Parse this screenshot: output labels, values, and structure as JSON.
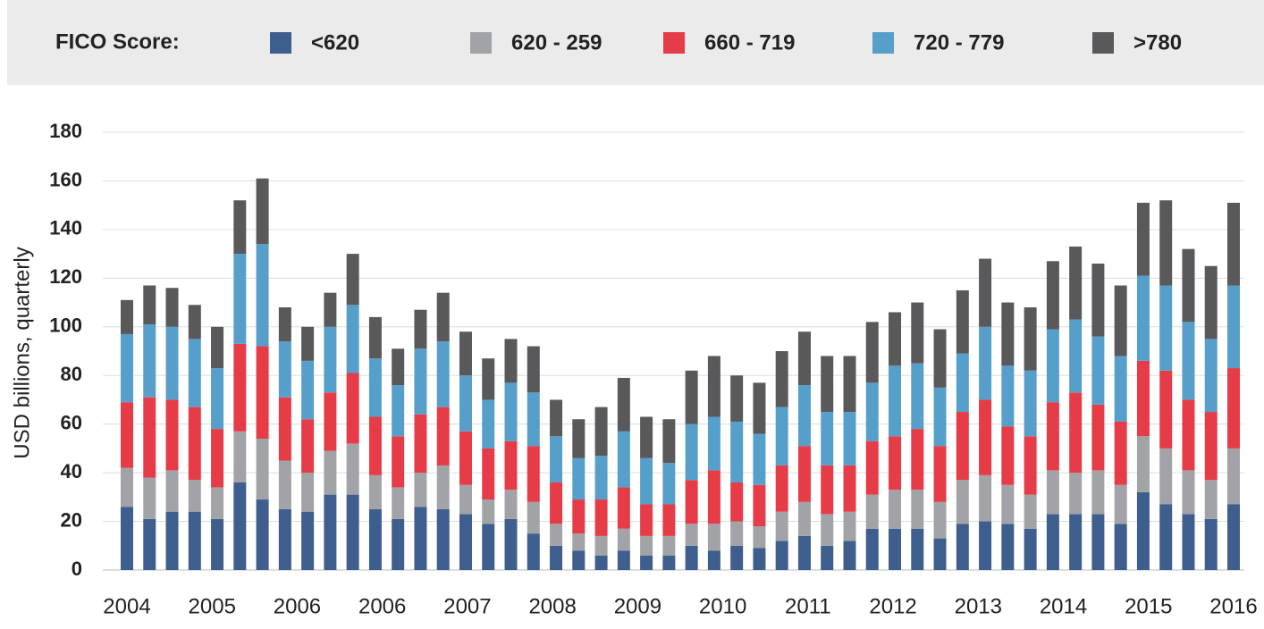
{
  "chart_data": {
    "type": "stacked_bar",
    "legend_title": "FICO Score:",
    "ylabel": "USD billions, quarterly",
    "x_labels": [
      "2004",
      "2005",
      "2006",
      "2006",
      "2007",
      "2008",
      "2009",
      "2010",
      "2011",
      "2012",
      "2013",
      "2014",
      "2015",
      "2016"
    ],
    "ylim": [
      0,
      180
    ],
    "yticks": [
      0,
      20,
      40,
      60,
      80,
      100,
      120,
      140,
      160,
      180
    ],
    "grid": true,
    "legend": "top",
    "series": [
      {
        "name": "<620",
        "color": "#3e5e8e",
        "values": [
          26,
          21,
          24,
          24,
          21,
          36,
          29,
          25,
          24,
          31,
          31,
          25,
          21,
          26,
          25,
          23,
          19,
          21,
          15,
          10,
          8,
          6,
          8,
          6,
          6,
          10,
          8,
          10,
          9,
          12,
          14,
          10,
          12,
          17,
          17,
          17,
          13,
          19,
          20,
          19,
          17,
          23,
          23,
          23,
          19,
          32,
          27,
          23,
          21,
          27
        ]
      },
      {
        "name": "620 - 259",
        "color": "#a1a3a6",
        "values": [
          16,
          17,
          17,
          13,
          13,
          21,
          25,
          20,
          16,
          18,
          21,
          14,
          13,
          14,
          18,
          12,
          10,
          12,
          13,
          9,
          7,
          8,
          9,
          8,
          8,
          9,
          11,
          10,
          9,
          12,
          14,
          13,
          12,
          14,
          16,
          16,
          15,
          18,
          19,
          16,
          14,
          18,
          17,
          18,
          16,
          23,
          23,
          18,
          16,
          23
        ]
      },
      {
        "name": "660 - 719",
        "color": "#e63c47",
        "values": [
          27,
          33,
          29,
          30,
          24,
          36,
          38,
          26,
          22,
          24,
          29,
          24,
          21,
          24,
          24,
          22,
          21,
          20,
          23,
          17,
          14,
          15,
          17,
          13,
          13,
          18,
          22,
          16,
          17,
          19,
          23,
          20,
          19,
          22,
          22,
          25,
          23,
          28,
          31,
          24,
          24,
          28,
          33,
          27,
          26,
          31,
          32,
          29,
          28,
          33
        ]
      },
      {
        "name": "720 - 779",
        "color": "#579fcb",
        "values": [
          28,
          30,
          30,
          28,
          25,
          37,
          42,
          23,
          24,
          27,
          28,
          24,
          21,
          27,
          27,
          23,
          20,
          24,
          22,
          19,
          17,
          18,
          23,
          19,
          17,
          23,
          22,
          25,
          21,
          24,
          25,
          22,
          22,
          24,
          29,
          27,
          24,
          24,
          30,
          25,
          27,
          30,
          30,
          28,
          27,
          35,
          35,
          32,
          30,
          34
        ]
      },
      {
        "name": ">780",
        "color": "#59595b",
        "values": [
          14,
          16,
          16,
          14,
          17,
          22,
          27,
          14,
          14,
          14,
          21,
          17,
          15,
          16,
          20,
          18,
          17,
          18,
          19,
          15,
          16,
          20,
          22,
          17,
          18,
          22,
          25,
          19,
          21,
          23,
          22,
          23,
          23,
          25,
          22,
          25,
          24,
          26,
          28,
          26,
          26,
          28,
          30,
          30,
          29,
          30,
          35,
          30,
          30,
          34
        ]
      }
    ]
  }
}
